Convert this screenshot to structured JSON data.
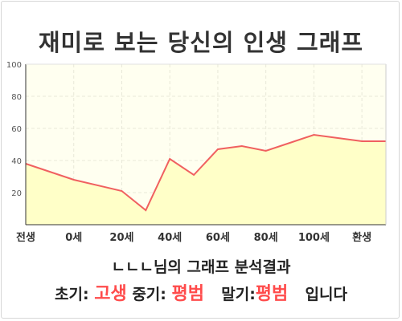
{
  "title": "재미로 보는 당신의 인생 그래프",
  "chart_data": {
    "type": "area",
    "title": "재미로 보는 당신의 인생 그래프",
    "xlabel": "",
    "ylabel": "",
    "ylim": [
      0,
      100
    ],
    "yticks": [
      20,
      40,
      60,
      80,
      100
    ],
    "xlim": [
      0,
      15
    ],
    "xticks": [
      {
        "x": 0,
        "label": "전생"
      },
      {
        "x": 2,
        "label": "0세"
      },
      {
        "x": 4,
        "label": "20세"
      },
      {
        "x": 6,
        "label": "40세"
      },
      {
        "x": 8,
        "label": "60세"
      },
      {
        "x": 10,
        "label": "80세"
      },
      {
        "x": 12,
        "label": "100세"
      },
      {
        "x": 14,
        "label": "환생"
      }
    ],
    "grid": true,
    "series": [
      {
        "x": [
          0,
          2,
          4,
          5,
          6,
          7,
          8,
          9,
          10,
          11,
          12,
          13,
          14
        ],
        "values": [
          38,
          28,
          21,
          9,
          41,
          31,
          47,
          49,
          46,
          51,
          56,
          54,
          52
        ]
      }
    ],
    "colors": {
      "line": "#f06060",
      "fill": "#ffffc8",
      "plot_bg": "#fffff0",
      "grid": "#e8e8d8",
      "axis": "#333333"
    }
  },
  "result": {
    "line1": "ㄴㄴㄴ님의 그래프 분석결과",
    "early_label": "초기:",
    "early_value": "고생",
    "mid_label": "중기:",
    "mid_value": "평범",
    "late_label": "말기:",
    "late_value": "평범",
    "suffix": "입니다"
  }
}
